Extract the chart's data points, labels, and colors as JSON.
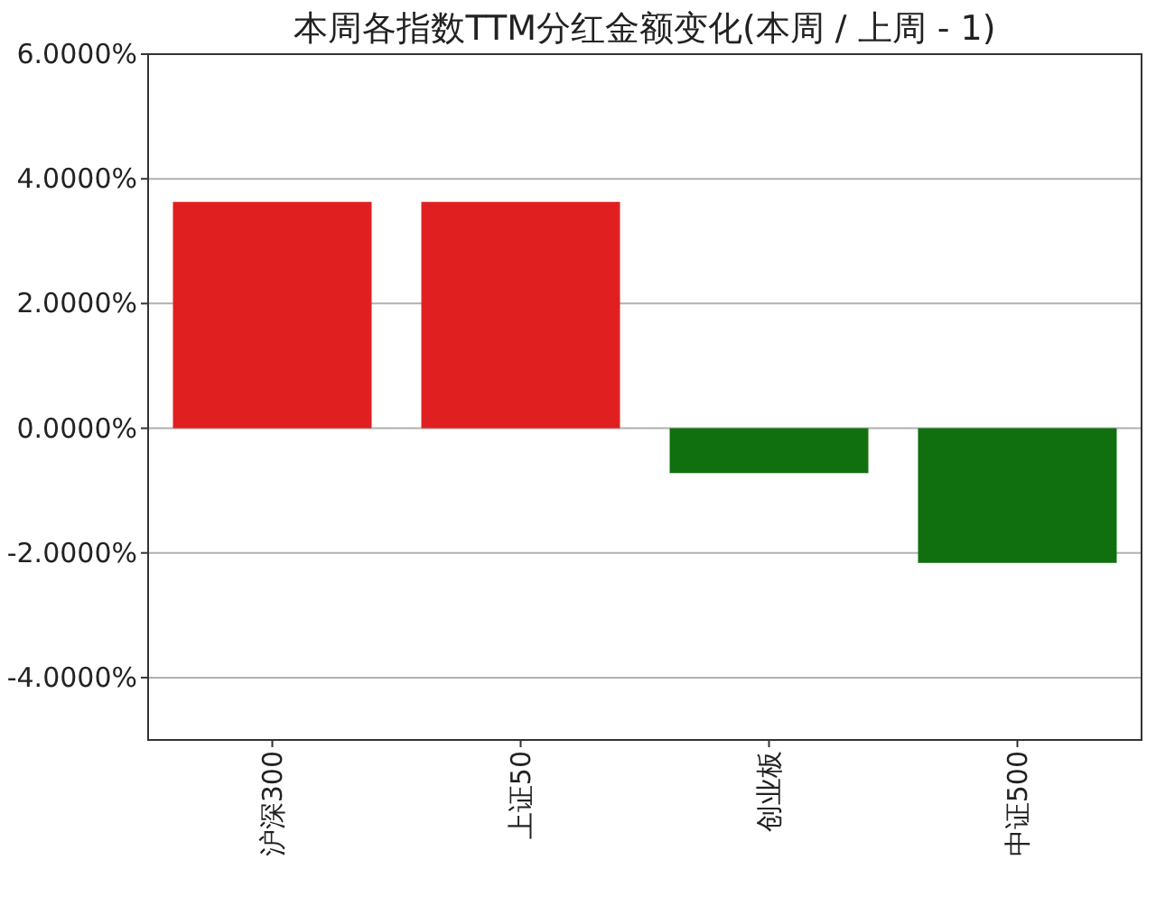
{
  "chart_data": {
    "type": "bar",
    "title": "本周各指数TTM分红金额变化(本周 / 上周 - 1)",
    "categories": [
      "沪深300",
      "上证50",
      "创业板",
      "中证500"
    ],
    "values": [
      3.63,
      3.63,
      -0.72,
      -2.16
    ],
    "colors": [
      "#e02020",
      "#e02020",
      "#107010",
      "#107010"
    ],
    "ylim": [
      -5,
      6
    ],
    "yticks": [
      {
        "value": -4,
        "label": "-4.0000%"
      },
      {
        "value": -2,
        "label": "-2.0000%"
      },
      {
        "value": 0,
        "label": "0.0000%"
      },
      {
        "value": 2,
        "label": "2.0000%"
      },
      {
        "value": 4,
        "label": "4.0000%"
      },
      {
        "value": 6,
        "label": "6.0000%"
      }
    ],
    "grid": "y"
  }
}
